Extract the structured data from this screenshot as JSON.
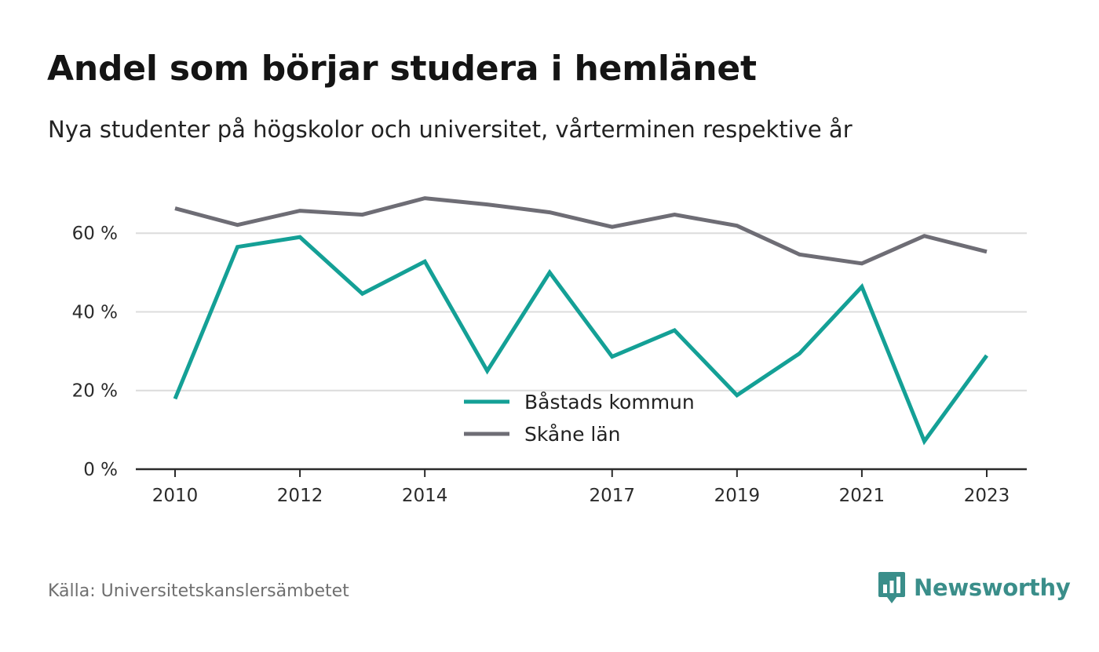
{
  "title": "Andel som börjar studera i hemlänet",
  "subtitle": "Nya studenter på högskolor och universitet, vårterminen respektive år",
  "source": "Källa: Universitetskanslersämbetet",
  "brand": {
    "name": "Newsworthy",
    "icon": "newsworthy-logo-icon",
    "color": "#3a8e8a"
  },
  "chart_data": {
    "type": "line",
    "x": [
      2010,
      2011,
      2012,
      2013,
      2014,
      2015,
      2016,
      2017,
      2018,
      2019,
      2020,
      2021,
      2022,
      2023
    ],
    "x_ticks": [
      "2010",
      "2012",
      "2014",
      "2017",
      "2019",
      "2021",
      "2023"
    ],
    "y_ticks": [
      "0 %",
      "20 %",
      "40 %",
      "60 %"
    ],
    "ylim": [
      0,
      75
    ],
    "grid": true,
    "legend_position": "center",
    "series": [
      {
        "name": "Båstads kommun",
        "color": "#14a096",
        "values": [
          17.9,
          56.5,
          59.0,
          44.6,
          52.8,
          25.0,
          50.0,
          28.6,
          35.3,
          18.8,
          29.4,
          46.4,
          7.1,
          28.9
        ]
      },
      {
        "name": "Skåne län",
        "color": "#6e6d75",
        "values": [
          66.3,
          62.1,
          65.7,
          64.7,
          68.9,
          67.3,
          65.3,
          61.6,
          64.7,
          61.9,
          54.6,
          52.3,
          59.3,
          55.3
        ]
      }
    ]
  }
}
